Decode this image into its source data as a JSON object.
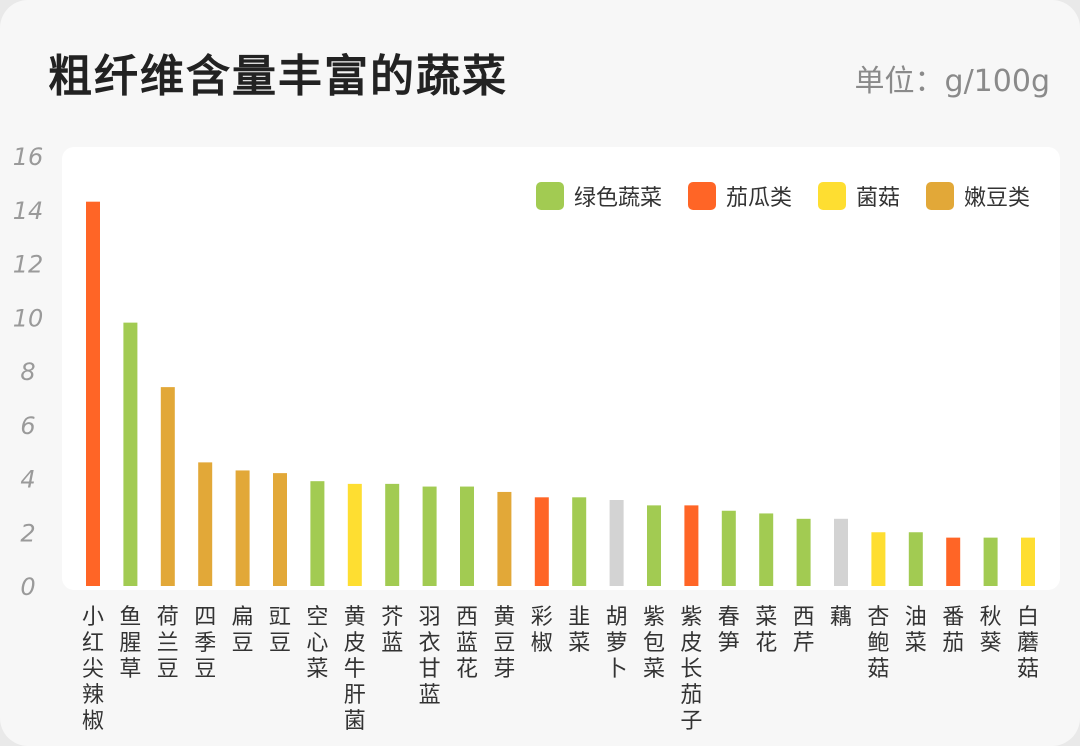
{
  "header": {
    "title": "粗纤维含量丰富的蔬菜",
    "unit": "单位：g/100g"
  },
  "colors": {
    "green": "#a2cb52",
    "orange": "#ff6526",
    "yellow": "#fede31",
    "tan": "#e2a838",
    "gray": "#d3d3d3"
  },
  "legend": [
    {
      "label": "绿色蔬菜",
      "color": "#a2cb52"
    },
    {
      "label": "茄瓜类",
      "color": "#ff6526"
    },
    {
      "label": "菌菇",
      "color": "#fede31"
    },
    {
      "label": "嫩豆类",
      "color": "#e2a838"
    }
  ],
  "chart_data": {
    "type": "bar",
    "ylim": [
      0,
      16
    ],
    "yticks": [
      0,
      2,
      4,
      6,
      8,
      10,
      12,
      14,
      16
    ],
    "grid": false,
    "legend_position": "top-right",
    "categories": [
      "小红尖辣椒",
      "鱼腥草",
      "荷兰豆",
      "四季豆",
      "扁豆",
      "豇豆",
      "空心菜",
      "黄皮牛肝菌",
      "芥蓝",
      "羽衣甘蓝",
      "西蓝花",
      "黄豆芽",
      "彩椒",
      "韭菜",
      "胡萝卜",
      "紫包菜",
      "紫皮长茄子",
      "春笋",
      "菜花",
      "西芹",
      "藕",
      "杏鲍菇",
      "油菜",
      "番茄",
      "秋葵",
      "白蘑菇"
    ],
    "values": [
      14.3,
      9.8,
      7.4,
      4.6,
      4.3,
      4.2,
      3.9,
      3.8,
      3.8,
      3.7,
      3.7,
      3.5,
      3.3,
      3.3,
      3.2,
      3.0,
      3.0,
      2.8,
      2.7,
      2.5,
      2.5,
      2.0,
      2.0,
      1.8,
      1.8,
      1.8
    ],
    "bar_colors": [
      "#ff6526",
      "#a2cb52",
      "#e2a838",
      "#e2a838",
      "#e2a838",
      "#e2a838",
      "#a2cb52",
      "#fede31",
      "#a2cb52",
      "#a2cb52",
      "#a2cb52",
      "#e2a838",
      "#ff6526",
      "#a2cb52",
      "#d3d3d3",
      "#a2cb52",
      "#ff6526",
      "#a2cb52",
      "#a2cb52",
      "#a2cb52",
      "#d3d3d3",
      "#fede31",
      "#a2cb52",
      "#ff6526",
      "#a2cb52",
      "#fede31"
    ]
  }
}
